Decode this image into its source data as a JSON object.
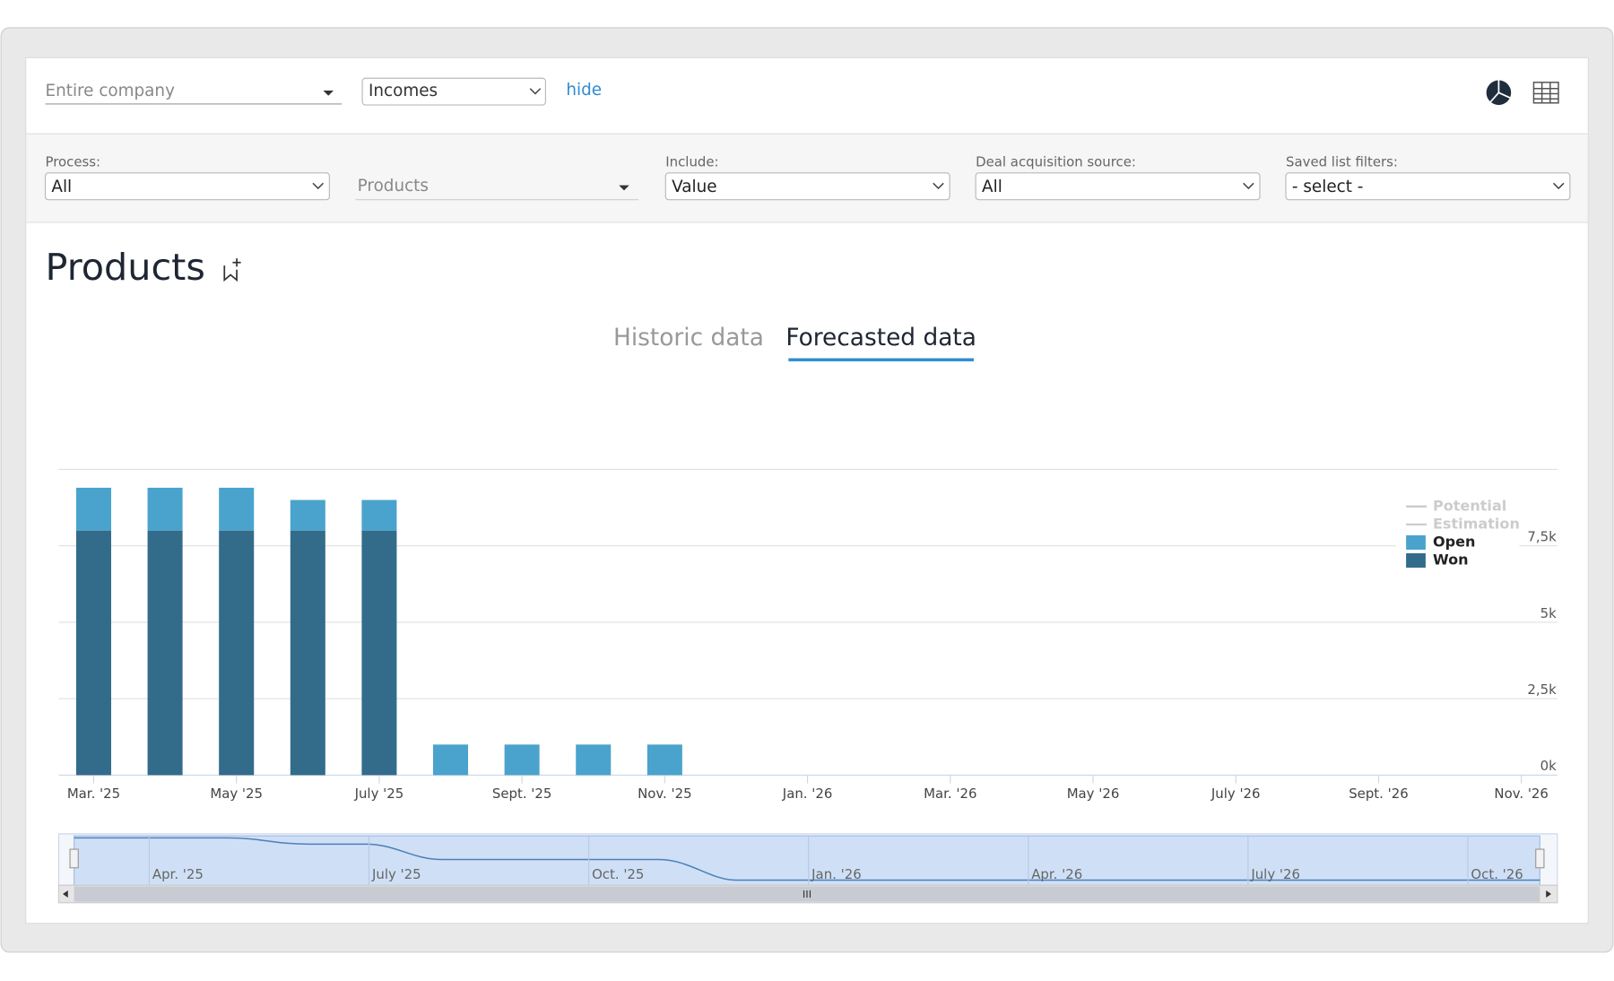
{
  "toolbar": {
    "scope_select": "Entire company",
    "type_select": "Incomes",
    "hide_link": "hide"
  },
  "filters": [
    {
      "label": "Process:",
      "value": "All"
    },
    {
      "label": null,
      "value": "Products"
    },
    {
      "label": "Include:",
      "value": "Value"
    },
    {
      "label": "Deal acquisition source:",
      "value": "All"
    },
    {
      "label": "Saved list filters:",
      "value": "- select -"
    }
  ],
  "heading": "Products",
  "tabs": [
    "Historic data",
    "Forecasted data"
  ],
  "chart_data": {
    "type": "bar",
    "stacked": true,
    "categories": [
      "Mar. '25",
      null,
      "May '25",
      null,
      "July '25",
      null,
      "Sept. '25",
      null,
      "Nov. '25",
      null,
      "Jan. '26",
      null,
      "Mar. '26",
      null,
      "May '26",
      null,
      "July '26",
      null,
      "Sept. '26",
      null,
      "Nov. '26"
    ],
    "series": [
      {
        "name": "Won",
        "color": "#336c8a",
        "values": [
          8000,
          8000,
          8000,
          8000,
          8000,
          0,
          0,
          0,
          0,
          0,
          0,
          0,
          0,
          0,
          0,
          0,
          0,
          0,
          0,
          0,
          0
        ]
      },
      {
        "name": "Open",
        "color": "#4aa3cc",
        "values": [
          1400,
          1400,
          1400,
          1000,
          1000,
          1000,
          1000,
          1000,
          1000,
          0,
          0,
          0,
          0,
          0,
          0,
          0,
          0,
          0,
          0,
          0,
          0
        ]
      }
    ],
    "inactive_series": [
      {
        "name": "Potential"
      },
      {
        "name": "Estimation"
      }
    ],
    "ylim": [
      0,
      10000
    ],
    "yticks": [
      {
        "value": 0,
        "label": "0k"
      },
      {
        "value": 2500,
        "label": "2,5k"
      },
      {
        "value": 5000,
        "label": "5k"
      },
      {
        "value": 7500,
        "label": "7,5k"
      }
    ],
    "grid": true,
    "legend": "upper right",
    "navigator_labels": [
      "Apr. '25",
      "July '25",
      "Oct. '25",
      "Jan. '26",
      "Apr. '26",
      "July '26",
      "Oct. '26"
    ]
  }
}
